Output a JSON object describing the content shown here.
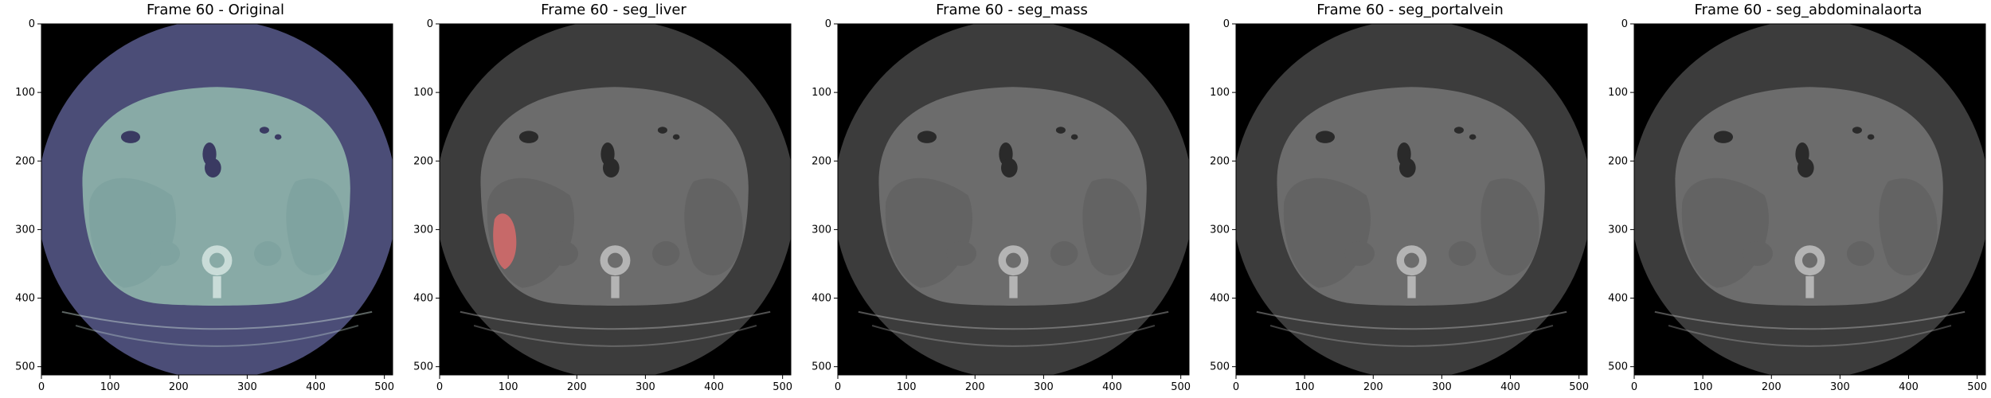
{
  "panels": [
    {
      "title": "Frame 60 - Original",
      "style": "original"
    },
    {
      "title": "Frame 60 - seg_liver",
      "style": "gray",
      "overlay": "liver"
    },
    {
      "title": "Frame 60 - seg_mass",
      "style": "gray"
    },
    {
      "title": "Frame 60 - seg_portalvein",
      "style": "gray"
    },
    {
      "title": "Frame 60 - seg_abdominalaorta",
      "style": "gray"
    }
  ],
  "axes": {
    "xticks": [
      "0",
      "100",
      "200",
      "300",
      "400",
      "500"
    ],
    "yticks": [
      "0",
      "100",
      "200",
      "300",
      "400",
      "500"
    ],
    "x_values": [
      0,
      100,
      200,
      300,
      400,
      500
    ],
    "y_values": [
      0,
      100,
      200,
      300,
      400,
      500
    ],
    "extent": [
      0,
      512
    ]
  },
  "colors": {
    "original_palette": {
      "bg": "#000000",
      "fov": "#4b4d77",
      "body": "#88aaa6",
      "organ": "#7fa3a0",
      "bone": "#c9dcd8",
      "air": "#3a3a62"
    },
    "gray_palette": {
      "bg": "#000000",
      "fov": "#3c3c3c",
      "body": "#6c6c6c",
      "organ": "#636363",
      "bone": "#b4b4b4",
      "air": "#2a2a2a"
    },
    "overlay": "#d86a6a"
  }
}
